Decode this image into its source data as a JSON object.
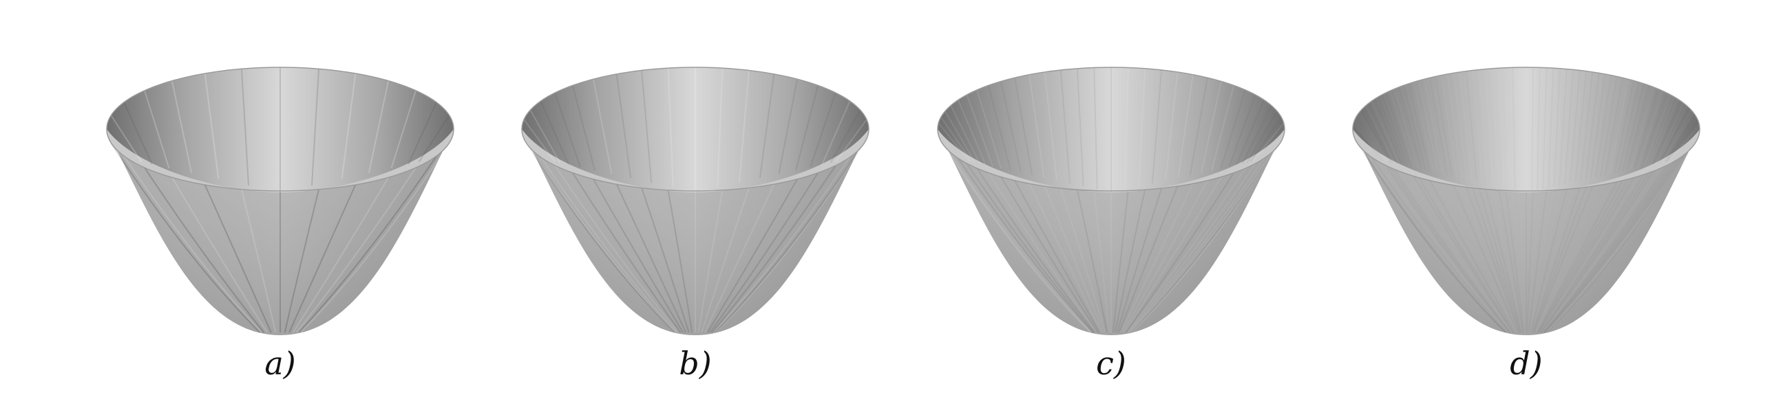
{
  "panels": [
    {
      "id": "a",
      "caption": "a)",
      "segments": 28
    },
    {
      "id": "b",
      "caption": "b)",
      "segments": 40
    },
    {
      "id": "c",
      "caption": "c)",
      "segments": 64
    },
    {
      "id": "d",
      "caption": "d)",
      "segments": 160
    }
  ],
  "colors": {
    "background": "#ffffff",
    "surface": "#b3b3b3",
    "surface_dark": "#8e8e8e",
    "surface_light": "#d9d9d9",
    "caption": "#111111"
  }
}
